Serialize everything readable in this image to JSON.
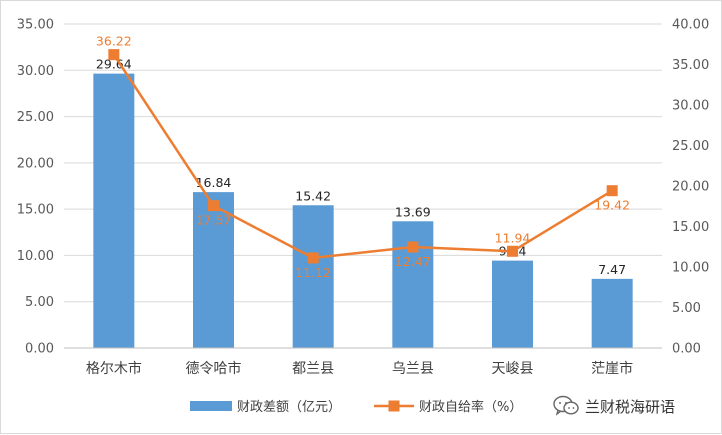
{
  "chart_data": {
    "type": "bar",
    "categories": [
      "格尔木市",
      "德令哈市",
      "都兰县",
      "乌兰县",
      "天峻县",
      "茫崖市"
    ],
    "series": [
      {
        "name": "财政差额（亿元）",
        "type": "bar",
        "axis": "left",
        "color": "#5b9bd5",
        "values": [
          29.64,
          16.84,
          15.42,
          13.69,
          9.44,
          7.47
        ],
        "labels": [
          "29.64",
          "16.84",
          "15.42",
          "13.69",
          "9.44",
          "7.47"
        ]
      },
      {
        "name": "财政自给率（%）",
        "type": "line",
        "axis": "right",
        "color": "#ed7d31",
        "values": [
          36.22,
          17.57,
          11.12,
          12.47,
          11.94,
          19.42
        ],
        "labels": [
          "36.22",
          "17.57",
          "11.12",
          "12.47",
          "11.94",
          "19.42"
        ]
      }
    ],
    "y_left": {
      "min": 0,
      "max": 35,
      "ticks": [
        "0.00",
        "5.00",
        "10.00",
        "15.00",
        "20.00",
        "25.00",
        "30.00",
        "35.00"
      ]
    },
    "y_right": {
      "min": 0,
      "max": 40,
      "ticks": [
        "0.00",
        "5.00",
        "10.00",
        "15.00",
        "20.00",
        "25.00",
        "30.00",
        "35.00",
        "40.00"
      ]
    },
    "grid": true,
    "legend": "bottom"
  },
  "watermark": {
    "text": "兰财税海研语",
    "icon": "wechat-icon"
  }
}
